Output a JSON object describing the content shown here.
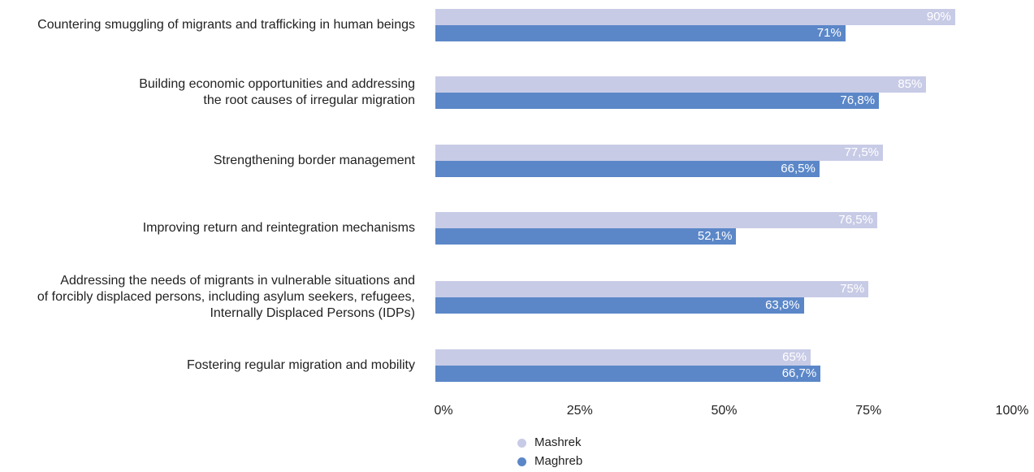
{
  "chart_data": {
    "type": "bar",
    "orientation": "horizontal",
    "categories": [
      "Countering smuggling of migrants and trafficking in human beings",
      "Building economic opportunities and addressing\nthe root causes of irregular migration",
      "Strengthening border management",
      "Improving return and reintegration mechanisms",
      "Addressing the needs of migrants in vulnerable situations and\nof forcibly displaced persons, including asylum seekers, refugees,\nInternally Displaced Persons (IDPs)",
      "Fostering regular migration and mobility"
    ],
    "series": [
      {
        "name": "Mashrek",
        "color": "#c8cbe6",
        "values": [
          90,
          85,
          77.5,
          76.5,
          75,
          65
        ],
        "labels": [
          "90%",
          "85%",
          "77,5%",
          "76,5%",
          "75%",
          "65%"
        ]
      },
      {
        "name": "Maghreb",
        "color": "#5b87c8",
        "values": [
          71,
          76.8,
          66.5,
          52.1,
          63.8,
          66.7
        ],
        "labels": [
          "71%",
          "76,8%",
          "66,5%",
          "52,1%",
          "63,8%",
          "66,7%"
        ]
      }
    ],
    "xlim": [
      0,
      100
    ],
    "x_ticks": [
      "0%",
      "25%",
      "50%",
      "75%",
      "100%"
    ],
    "grid": false,
    "legend_position": "bottom"
  }
}
